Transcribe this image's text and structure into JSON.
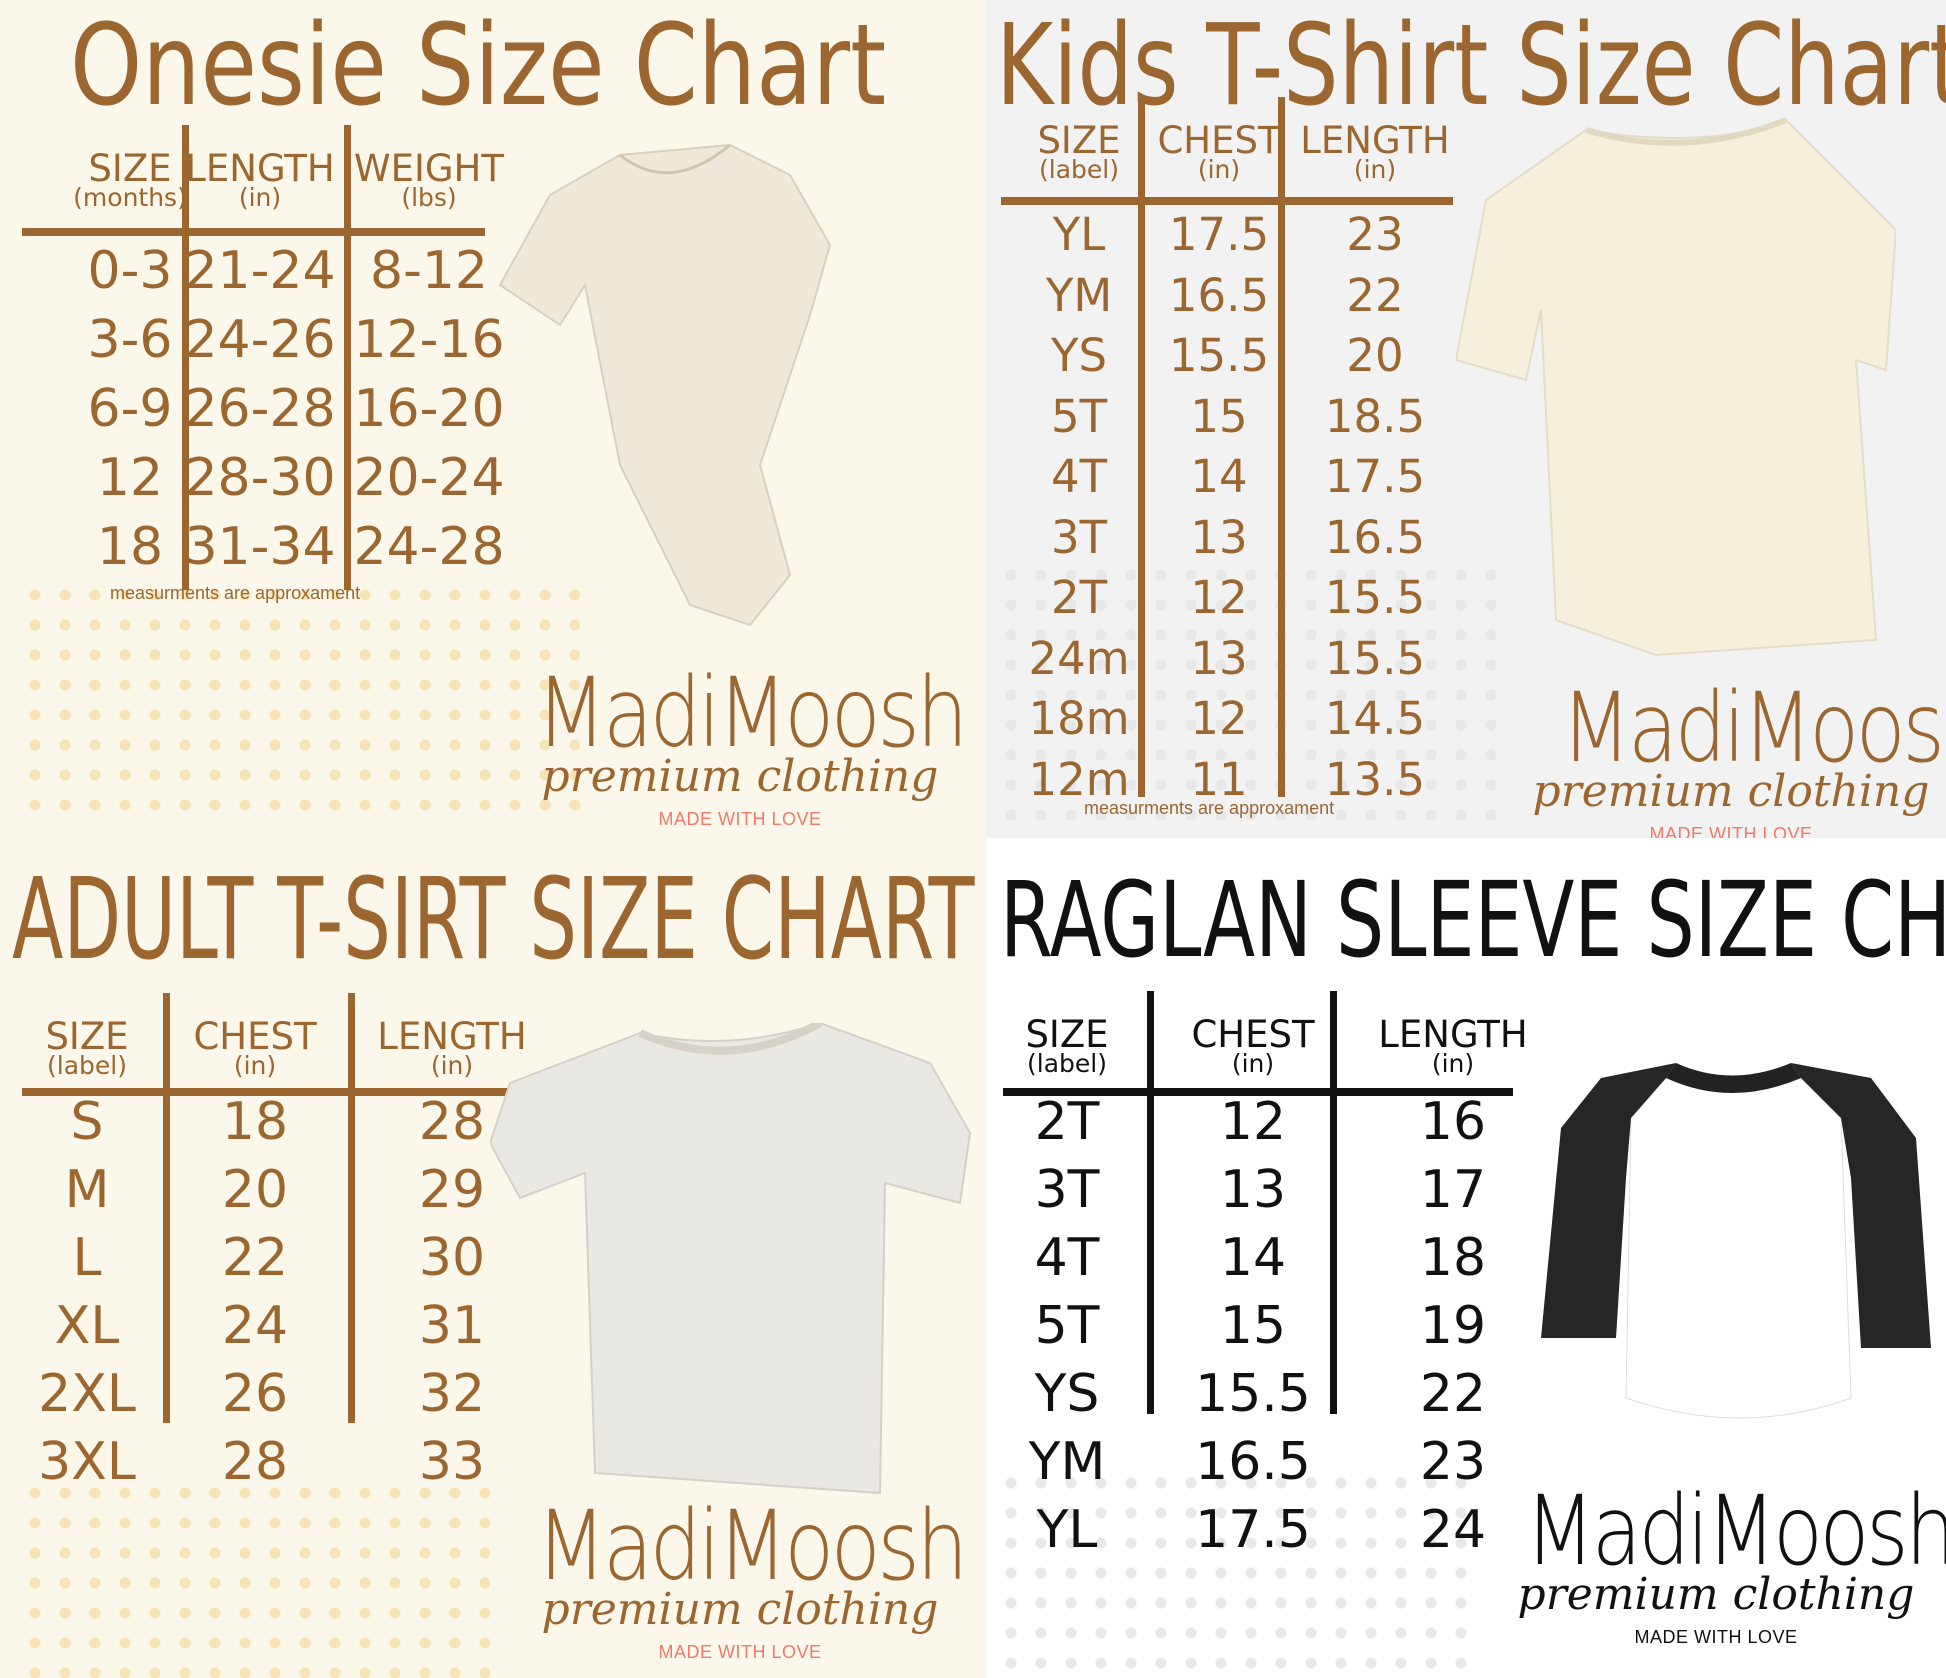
{
  "panels": [
    {
      "title": "Onesie Size Chart",
      "headers": [
        {
          "main": "SIZE",
          "sub": "(months)"
        },
        {
          "main": "LENGTH",
          "sub": "(in)"
        },
        {
          "main": "WEIGHT",
          "sub": "(lbs)"
        }
      ],
      "rows": [
        [
          "0-3",
          "21-24",
          "8-12"
        ],
        [
          "3-6",
          "24-26",
          "12-16"
        ],
        [
          "6-9",
          "26-28",
          "16-20"
        ],
        [
          "12",
          "28-30",
          "20-24"
        ],
        [
          "18",
          "31-34",
          "24-28"
        ]
      ],
      "note": "measurments are approxament",
      "garment": "onesie",
      "logo": {
        "brand": "MadiMoosh",
        "tagline": "premium clothing",
        "motto": "MADE WITH LOVE"
      },
      "colors": {
        "text": "#9b6630",
        "motto": "#f07a6a",
        "background": "#fbf7ea"
      }
    },
    {
      "title": "Kids T-Shirt Size Chart",
      "headers": [
        {
          "main": "SIZE",
          "sub": "(label)"
        },
        {
          "main": "CHEST",
          "sub": "(in)"
        },
        {
          "main": "LENGTH",
          "sub": "(in)"
        }
      ],
      "rows": [
        [
          "YL",
          "17.5",
          "23"
        ],
        [
          "YM",
          "16.5",
          "22"
        ],
        [
          "YS",
          "15.5",
          "20"
        ],
        [
          "5T",
          "15",
          "18.5"
        ],
        [
          "4T",
          "14",
          "17.5"
        ],
        [
          "3T",
          "13",
          "16.5"
        ],
        [
          "2T",
          "12",
          "15.5"
        ],
        [
          "24m",
          "13",
          "15.5"
        ],
        [
          "18m",
          "12",
          "14.5"
        ],
        [
          "12m",
          "11",
          "13.5"
        ]
      ],
      "note": "measurments are approxament",
      "garment": "tshirt-cream",
      "logo": {
        "brand": "MadiMoosh",
        "tagline": "premium clothing",
        "motto": "MADE WITH LOVE"
      },
      "colors": {
        "text": "#9b6630",
        "motto": "#f07a6a",
        "background": "#f2f2f2"
      }
    },
    {
      "title": "ADULT T-SIRT SIZE CHART",
      "headers": [
        {
          "main": "SIZE",
          "sub": "(label)"
        },
        {
          "main": "CHEST",
          "sub": "(in)"
        },
        {
          "main": "LENGTH",
          "sub": "(in)"
        }
      ],
      "rows": [
        [
          "S",
          "18",
          "28"
        ],
        [
          "M",
          "20",
          "29"
        ],
        [
          "L",
          "22",
          "30"
        ],
        [
          "XL",
          "24",
          "31"
        ],
        [
          "2XL",
          "26",
          "32"
        ],
        [
          "3XL",
          "28",
          "33"
        ]
      ],
      "garment": "tshirt-grey",
      "logo": {
        "brand": "MadiMoosh",
        "tagline": "premium clothing",
        "motto": "MADE WITH LOVE"
      },
      "colors": {
        "text": "#9b6630",
        "motto": "#f07a6a",
        "background": "#fbf7ea"
      }
    },
    {
      "title": "RAGLAN SLEEVE SIZE CHART",
      "headers": [
        {
          "main": "SIZE",
          "sub": "(label)"
        },
        {
          "main": "CHEST",
          "sub": "(in)"
        },
        {
          "main": "LENGTH",
          "sub": "(in)"
        }
      ],
      "rows": [
        [
          "2T",
          "12",
          "16"
        ],
        [
          "3T",
          "13",
          "17"
        ],
        [
          "4T",
          "14",
          "18"
        ],
        [
          "5T",
          "15",
          "19"
        ],
        [
          "YS",
          "15.5",
          "22"
        ],
        [
          "YM",
          "16.5",
          "23"
        ],
        [
          "YL",
          "17.5",
          "24"
        ]
      ],
      "garment": "raglan",
      "logo": {
        "brand": "MadiMoosh",
        "tagline": "premium clothing",
        "motto": "MADE WITH LOVE"
      },
      "colors": {
        "text": "#111111",
        "motto": "#111111",
        "background": "#ffffff"
      }
    }
  ]
}
